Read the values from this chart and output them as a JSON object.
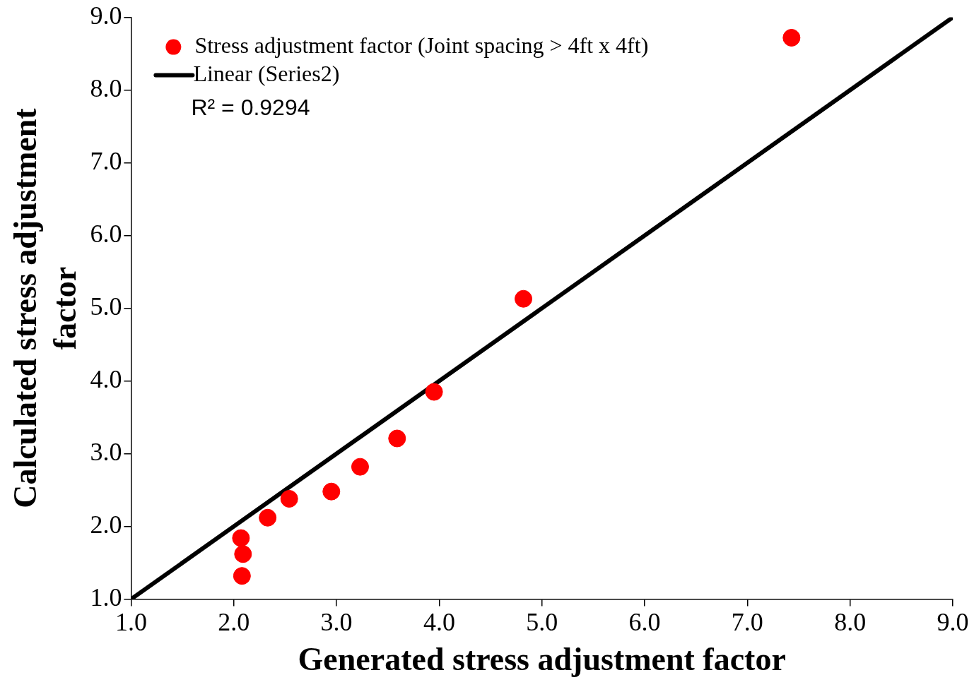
{
  "chart_data": {
    "type": "scatter",
    "xlabel": "Generated stress adjustment factor",
    "ylabel": "Calculated stress adjustment factor",
    "series": [
      {
        "name": "Stress adjustment factor (Joint spacing > 4ft x 4ft)",
        "marker": "circle",
        "color": "#ff0000",
        "x": [
          2.07,
          2.09,
          2.08,
          2.33,
          2.54,
          2.95,
          3.23,
          3.59,
          3.95,
          4.82,
          7.43
        ],
        "values": [
          1.84,
          1.62,
          1.32,
          2.12,
          2.38,
          2.48,
          2.82,
          3.21,
          3.85,
          5.13,
          8.72
        ]
      },
      {
        "name": "Linear (Series2)",
        "type": "line",
        "marker": "none",
        "color": "#000000",
        "x": [
          1,
          9
        ],
        "values": [
          1,
          9
        ]
      }
    ],
    "xlim": [
      1,
      9
    ],
    "ylim": [
      1,
      9
    ],
    "xticks": [
      {
        "value": 1,
        "label": "1.0"
      },
      {
        "value": 2,
        "label": "2.0"
      },
      {
        "value": 3,
        "label": "3.0"
      },
      {
        "value": 4,
        "label": "4.0"
      },
      {
        "value": 5,
        "label": "5.0"
      },
      {
        "value": 6,
        "label": "6.0"
      },
      {
        "value": 7,
        "label": "7.0"
      },
      {
        "value": 8,
        "label": "8.0"
      },
      {
        "value": 9,
        "label": "9.0"
      }
    ],
    "yticks": [
      {
        "value": 1,
        "label": "1.0"
      },
      {
        "value": 2,
        "label": "2.0"
      },
      {
        "value": 3,
        "label": "3.0"
      },
      {
        "value": 4,
        "label": "4.0"
      },
      {
        "value": 5,
        "label": "5.0"
      },
      {
        "value": 6,
        "label": "6.0"
      },
      {
        "value": 7,
        "label": "7.0"
      },
      {
        "value": 8,
        "label": "8.0"
      },
      {
        "value": 9,
        "label": "9.0"
      }
    ],
    "annotations": [
      "R² = 0.9294"
    ],
    "grid": false,
    "legend": "top left",
    "line_style": "solid"
  }
}
